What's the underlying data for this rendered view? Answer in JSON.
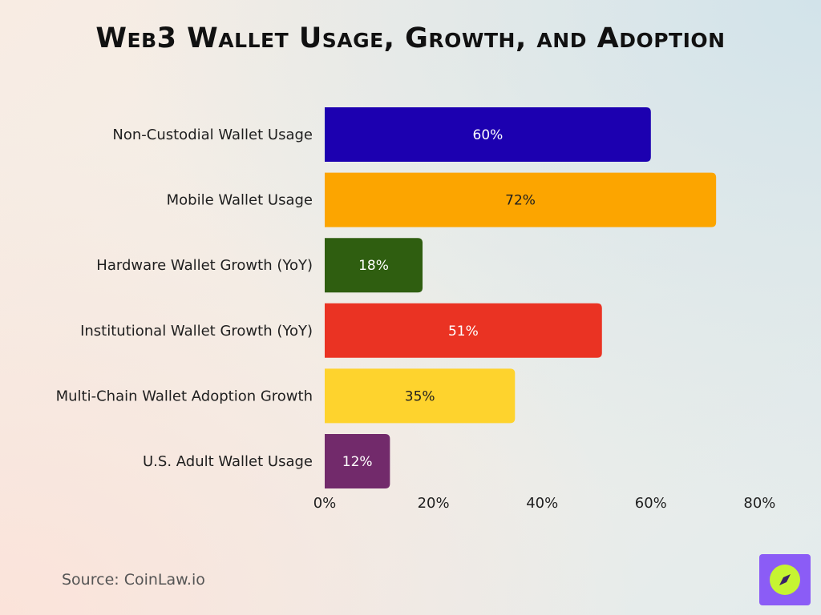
{
  "chart_data": {
    "type": "bar",
    "orientation": "horizontal",
    "title": "Web3 Wallet Usage, Growth, and Adoption",
    "categories": [
      "Non-Custodial Wallet Usage",
      "Mobile Wallet Usage",
      "Hardware Wallet Growth (YoY)",
      "Institutional Wallet Growth (YoY)",
      "Multi-Chain Wallet Adoption Growth",
      "U.S. Adult Wallet Usage"
    ],
    "values": [
      60,
      72,
      18,
      51,
      35,
      12
    ],
    "data_labels": [
      "60%",
      "72%",
      "18%",
      "51%",
      "35%",
      "12%"
    ],
    "bar_colors": [
      "#1c00b0",
      "#fca500",
      "#2f5e10",
      "#ea3323",
      "#fed32d",
      "#722a6b"
    ],
    "label_colors": [
      "#ffffff",
      "#1f1f1f",
      "#ffffff",
      "#ffffff",
      "#1f1f1f",
      "#ffffff"
    ],
    "xlim": [
      0,
      80
    ],
    "xticks": [
      0,
      20,
      40,
      60,
      80
    ],
    "xtick_labels": [
      "0%",
      "20%",
      "40%",
      "60%",
      "80%"
    ],
    "grid": false,
    "legend": "none"
  },
  "source": "Source: CoinLaw.io",
  "logo": {
    "icon": "compass-icon",
    "background_color": "#8b5cf6",
    "accent_color": "#c6f432"
  }
}
